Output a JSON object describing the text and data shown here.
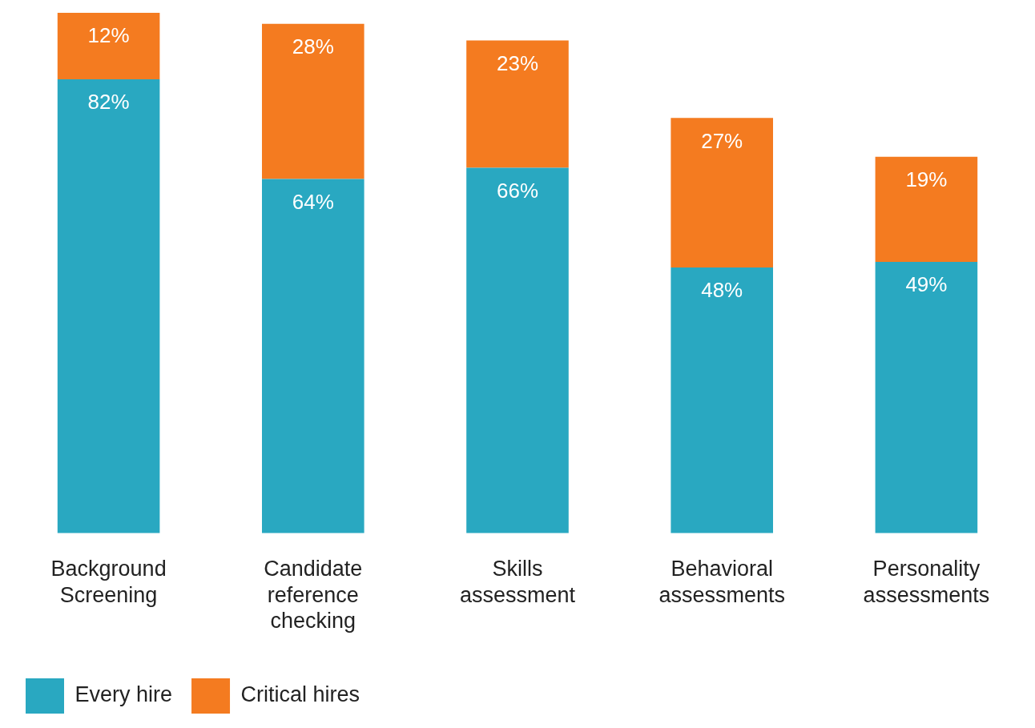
{
  "chart_data": {
    "type": "bar",
    "stacked": true,
    "categories": [
      "Background Screening",
      "Candidate reference checking",
      "Skills assessment",
      "Behavioral assessments",
      "Personality assessments"
    ],
    "series": [
      {
        "name": "Every hire",
        "color": "#29a8c1",
        "values": [
          82,
          64,
          66,
          48,
          49
        ],
        "value_labels": [
          "82%",
          "64%",
          "66%",
          "48%",
          "49%"
        ]
      },
      {
        "name": "Critical hires",
        "color": "#f47b20",
        "values": [
          12,
          28,
          23,
          27,
          19
        ],
        "value_labels": [
          "12%",
          "28%",
          "23%",
          "27%",
          "19%"
        ]
      }
    ],
    "legend": "bottom left",
    "grid": false,
    "tick_labels": "x"
  }
}
